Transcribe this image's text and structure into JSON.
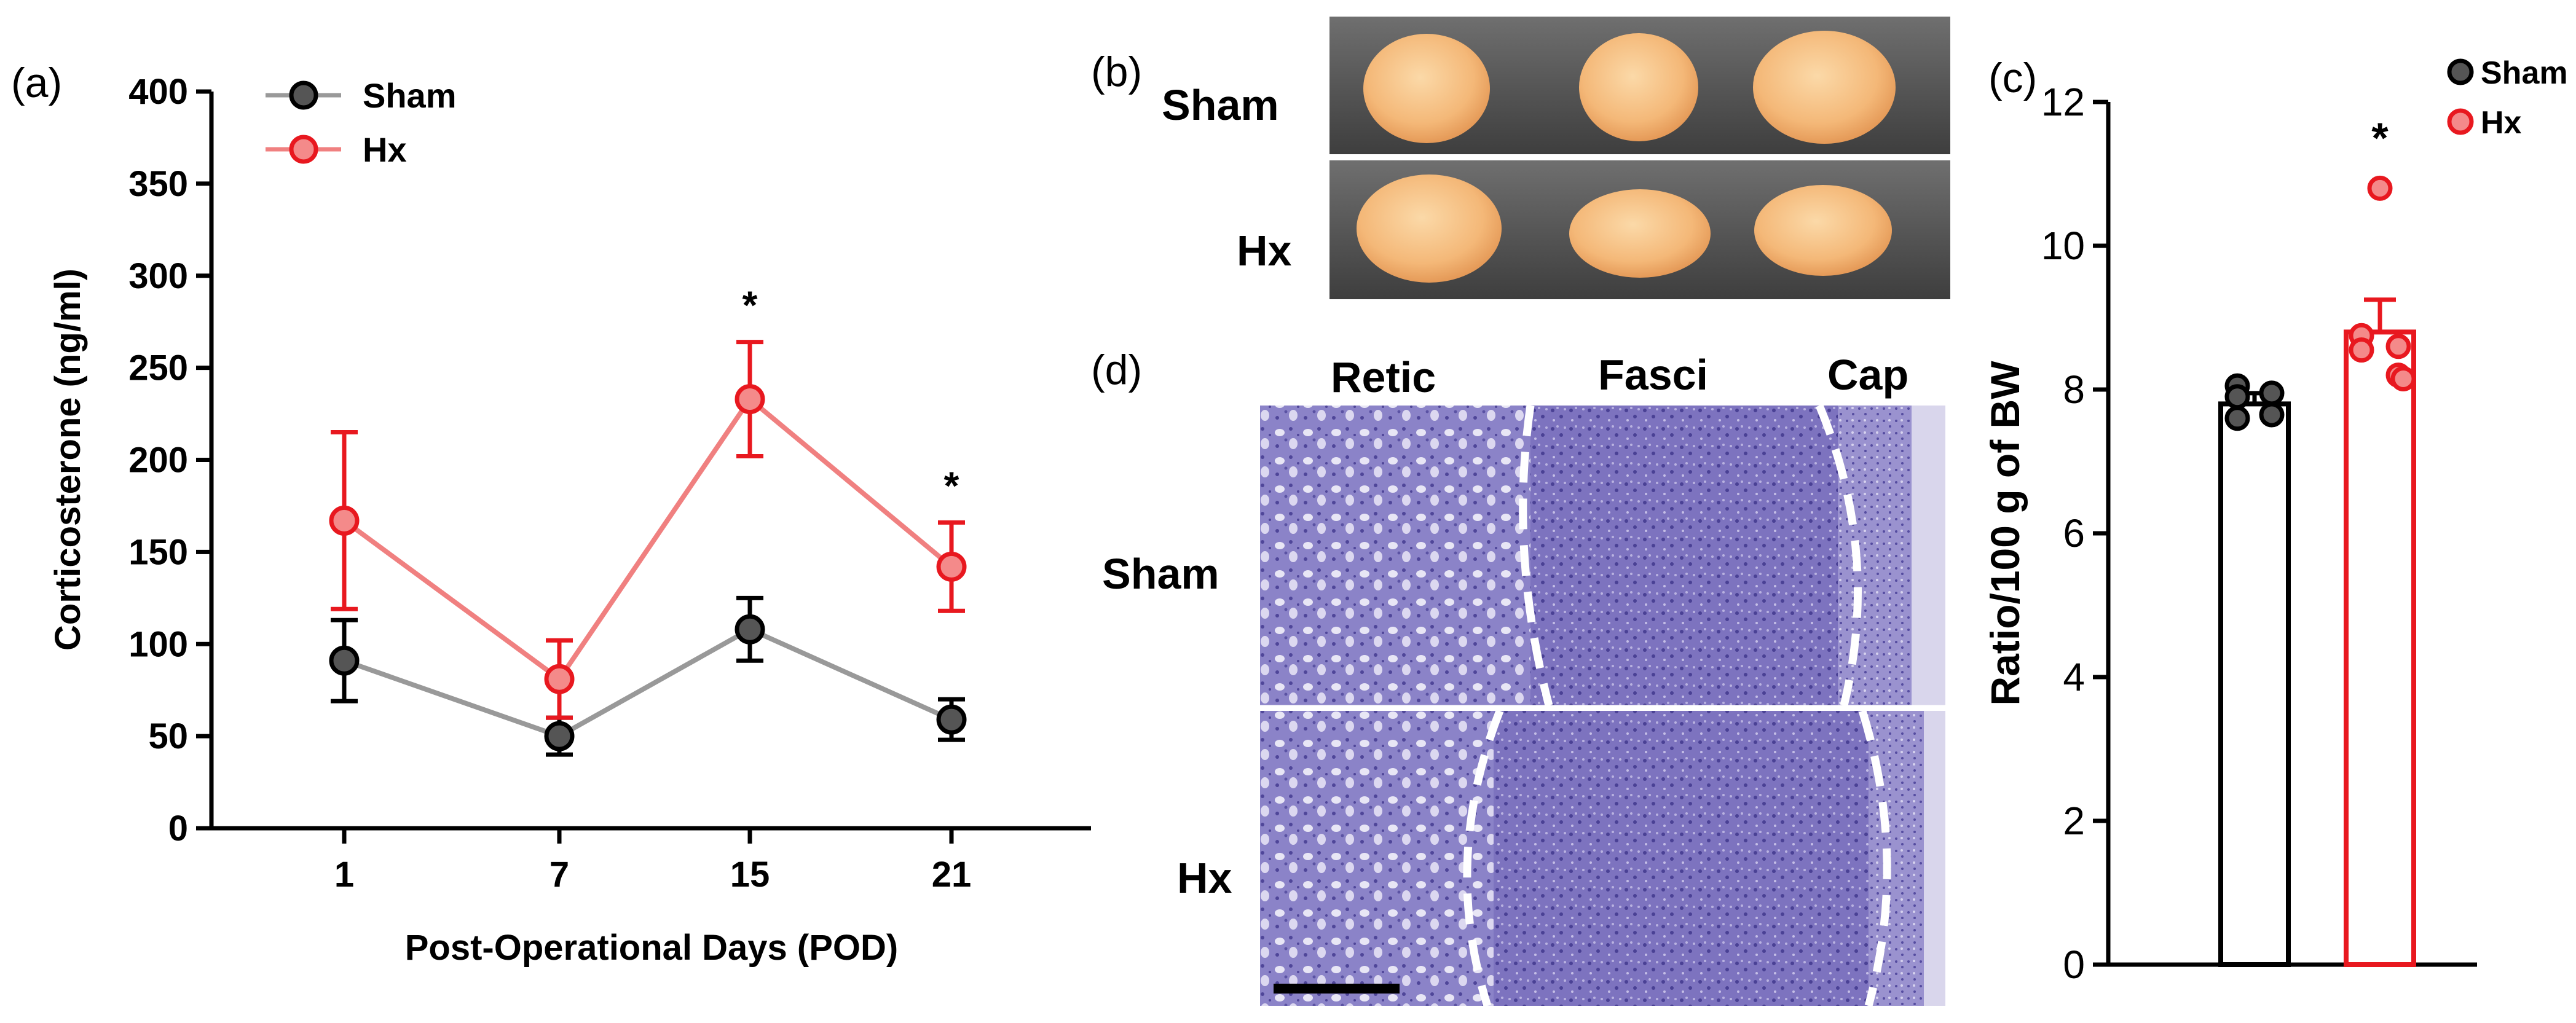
{
  "panels": {
    "a": "(a)",
    "b": "(b)",
    "c": "(c)",
    "d": "(d)"
  },
  "chart_data": [
    {
      "type": "line",
      "panel": "a",
      "title": "",
      "xlabel": "Post-Operational Days (POD)",
      "ylabel": "Corticosterone (ng/ml)",
      "categories": [
        "1",
        "7",
        "15",
        "21"
      ],
      "ylim": [
        0,
        400
      ],
      "yticks": [
        0,
        50,
        100,
        150,
        200,
        250,
        300,
        350,
        400
      ],
      "grid": false,
      "legend_position": "top-left",
      "series": [
        {
          "name": "Sham",
          "color": "#999999",
          "marker_fill": "#555555",
          "values": [
            91,
            50,
            108,
            59
          ],
          "err": [
            22,
            10,
            17,
            11
          ]
        },
        {
          "name": "Hx",
          "color": "#f08080",
          "marker_fill": "#f48a8a",
          "marker_edge": "#e8181f",
          "values": [
            167,
            81,
            233,
            142
          ],
          "err": [
            48,
            21,
            31,
            24
          ]
        }
      ],
      "annotations": [
        {
          "text": "*",
          "category": "15"
        },
        {
          "text": "*",
          "category": "21"
        }
      ]
    },
    {
      "type": "bar",
      "panel": "c",
      "title": "",
      "xlabel": "",
      "ylabel": "Ratio/100 g of BW",
      "categories": [
        "Sham",
        "Hx"
      ],
      "ylim": [
        0,
        12
      ],
      "yticks": [
        0,
        2,
        4,
        6,
        8,
        10,
        12
      ],
      "grid": false,
      "legend_position": "top-right",
      "series": [
        {
          "name": "Sham",
          "color": "#000000",
          "marker_fill": "#555555",
          "mean": 7.8,
          "sem": 0.15,
          "points": [
            8.05,
            7.95,
            7.9,
            7.65,
            7.6
          ]
        },
        {
          "name": "Hx",
          "color": "#e8181f",
          "marker_fill": "#f48a8a",
          "mean": 8.8,
          "sem": 0.45,
          "points": [
            10.8,
            8.75,
            8.6,
            8.55,
            8.2,
            8.15
          ]
        }
      ],
      "annotations": [
        {
          "text": "*",
          "category": "Hx"
        }
      ]
    }
  ],
  "photo_b": {
    "row_labels": [
      "Sham",
      "Hx"
    ]
  },
  "histology_d": {
    "zone_labels": [
      "Retic",
      "Fasci",
      "Cap"
    ],
    "row_labels": [
      "Sham",
      "Hx"
    ]
  }
}
